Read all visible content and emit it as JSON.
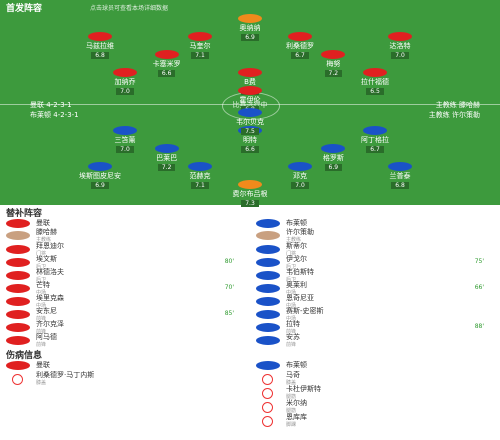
{
  "header": {
    "title": "首发阵容",
    "subtitle": "点击球员可查看本场详细数据"
  },
  "center": "比赛进行中",
  "home": {
    "name": "曼联",
    "formation": "4-2-3-1",
    "coach_label": "主教练",
    "coach": "滕哈赫",
    "lines": [
      [
        {
          "name": "奥纳纳",
          "rating": "6.9"
        }
      ],
      [
        {
          "name": "马兹拉维",
          "rating": "6.8"
        },
        {
          "name": "马奎尔",
          "rating": "7.1"
        },
        {
          "name": "利桑德罗",
          "rating": "6.7"
        },
        {
          "name": "达洛特",
          "rating": "7.0"
        }
      ],
      [
        {
          "name": "卡塞米罗",
          "rating": "6.6"
        },
        {
          "name": "梅努",
          "rating": "7.2"
        }
      ],
      [
        {
          "name": "加纳乔",
          "rating": "7.0"
        },
        {
          "name": "B费",
          "rating": "7.4"
        },
        {
          "name": "拉什福德",
          "rating": "6.5"
        }
      ],
      [
        {
          "name": "霍伊伦",
          "rating": "6.8"
        }
      ]
    ]
  },
  "away": {
    "name": "布莱顿",
    "formation": "4-2-3-1",
    "coach_label": "主教练",
    "coach": "许尔策勒",
    "lines": [
      [
        {
          "name": "费尔布吕根",
          "rating": "7.3"
        }
      ],
      [
        {
          "name": "埃斯图皮尼安",
          "rating": "6.9"
        },
        {
          "name": "范赫克",
          "rating": "7.1"
        },
        {
          "name": "邓克",
          "rating": "7.0"
        },
        {
          "name": "兰普泰",
          "rating": "6.8"
        }
      ],
      [
        {
          "name": "巴莱巴",
          "rating": "7.2"
        },
        {
          "name": "格罗斯",
          "rating": "6.9"
        }
      ],
      [
        {
          "name": "三笘薰",
          "rating": "7.0"
        },
        {
          "name": "明特",
          "rating": "6.6"
        },
        {
          "name": "阿丁格拉",
          "rating": "6.7"
        }
      ],
      [
        {
          "name": "韦尔贝克",
          "rating": "7.5"
        }
      ]
    ]
  },
  "subs": {
    "title": "替补阵容",
    "home": [
      {
        "name": "拜恩迪尔",
        "pos": "门将"
      },
      {
        "name": "埃文斯",
        "pos": "后卫",
        "event": "80'"
      },
      {
        "name": "林德洛夫",
        "pos": "后卫"
      },
      {
        "name": "芒特",
        "pos": "中场",
        "event": "70'"
      },
      {
        "name": "埃里克森",
        "pos": "中场"
      },
      {
        "name": "安东尼",
        "pos": "前锋",
        "event": "85'"
      },
      {
        "name": "齐尔克泽",
        "pos": "前锋"
      },
      {
        "name": "阿马德",
        "pos": "前锋"
      }
    ],
    "away": [
      {
        "name": "斯蒂尔",
        "pos": "门将"
      },
      {
        "name": "伊戈尔",
        "pos": "后卫",
        "event": "75'"
      },
      {
        "name": "韦伯斯特",
        "pos": "后卫"
      },
      {
        "name": "奥莱利",
        "pos": "中场",
        "event": "66'"
      },
      {
        "name": "恩奇尼亚",
        "pos": "中场"
      },
      {
        "name": "赛斯-史密斯",
        "pos": "中场"
      },
      {
        "name": "拉特",
        "pos": "前锋",
        "event": "88'"
      },
      {
        "name": "安苏",
        "pos": "前锋"
      }
    ]
  },
  "injuries": {
    "title": "伤病信息",
    "home": [
      {
        "name": "利桑德罗·马丁内斯",
        "reason": "膝盖"
      }
    ],
    "away": [
      {
        "name": "马奇",
        "reason": "膝盖"
      },
      {
        "name": "卡杜伊斯特",
        "reason": "腿筋"
      },
      {
        "name": "米尔纳",
        "reason": "腿筋"
      },
      {
        "name": "恩库库",
        "reason": "脚踝"
      }
    ]
  }
}
